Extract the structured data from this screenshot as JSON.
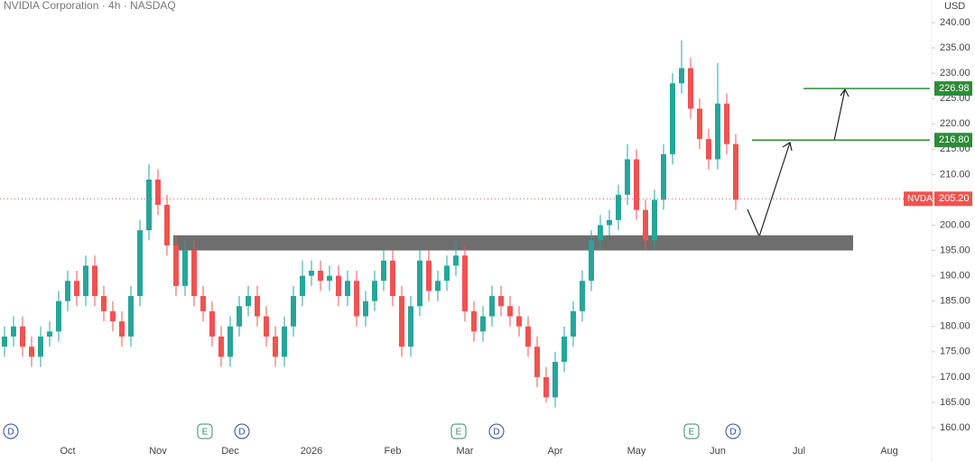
{
  "chart_data": {
    "type": "candlestick",
    "title": "NVIDIA Corporation · 4h · NASDAQ",
    "currency": "USD",
    "up_color": "#26a69a",
    "down_color": "#ef5350",
    "categories": [
      null,
      null,
      null,
      null,
      null,
      null,
      null,
      "Oct",
      null,
      null,
      null,
      null,
      null,
      null,
      null,
      null,
      null,
      "Nov",
      null,
      null,
      null,
      null,
      null,
      null,
      null,
      "Dec",
      null,
      null,
      null,
      null,
      null,
      null,
      null,
      null,
      "2026",
      null,
      null,
      null,
      null,
      null,
      null,
      null,
      null,
      "Feb",
      null,
      null,
      null,
      null,
      null,
      null,
      null,
      "Mar",
      null,
      null,
      null,
      null,
      null,
      null,
      null,
      null,
      null,
      "Apr",
      null,
      null,
      null,
      null,
      null,
      null,
      null,
      null,
      "May",
      null,
      null,
      null,
      null,
      null,
      null,
      null,
      null,
      "Jun",
      null,
      null,
      null,
      null,
      null,
      null,
      null,
      null,
      "Jul",
      null,
      null,
      null,
      null,
      null,
      null,
      null,
      null,
      null,
      "Aug",
      null,
      null,
      null,
      null
    ],
    "open": [
      176,
      178,
      180,
      176,
      174,
      178,
      179,
      185,
      189,
      186,
      192,
      186,
      183,
      181,
      178,
      186,
      199,
      209,
      204,
      196,
      188,
      195,
      186,
      183,
      178,
      174,
      180,
      184,
      186,
      182,
      178,
      174,
      180,
      186,
      190,
      191,
      189,
      190,
      186,
      189,
      182,
      185,
      189,
      193,
      186,
      176,
      184,
      193,
      187,
      189,
      192,
      194,
      183,
      179,
      182,
      186,
      184,
      182,
      180,
      176,
      170,
      166,
      173,
      178,
      183,
      189,
      197,
      200,
      201,
      206,
      213,
      203,
      197,
      205,
      214,
      228,
      231,
      223,
      217,
      213,
      224,
      216,
      null,
      null,
      null,
      null,
      null,
      null,
      null,
      null,
      null,
      null,
      null,
      null,
      null,
      null,
      null,
      null,
      null,
      null,
      null,
      null,
      null
    ],
    "high": [
      180,
      182,
      182,
      178,
      180,
      181,
      187,
      191,
      191,
      194,
      194,
      188,
      185,
      183,
      188,
      201,
      212,
      211,
      206,
      198,
      197,
      197,
      188,
      185,
      180,
      182,
      186,
      188,
      188,
      184,
      180,
      182,
      188,
      193,
      193,
      193,
      192,
      192,
      191,
      191,
      187,
      191,
      195,
      195,
      188,
      186,
      195,
      195,
      191,
      194,
      197,
      196,
      185,
      184,
      188,
      188,
      186,
      184,
      182,
      178,
      172,
      175,
      180,
      185,
      191,
      199,
      202,
      203,
      208,
      216,
      215,
      205,
      207,
      216,
      230,
      236.5,
      233,
      225,
      219,
      232,
      226,
      218,
      null,
      null,
      null,
      null,
      null,
      null,
      null,
      null,
      null,
      null,
      null,
      null,
      null,
      null,
      null,
      null,
      null,
      null,
      null,
      null,
      null
    ],
    "low": [
      174,
      176,
      174,
      172,
      172,
      176,
      177,
      183,
      184,
      184,
      184,
      181,
      179,
      176,
      176,
      184,
      197,
      202,
      194,
      186,
      186,
      184,
      181,
      176,
      172,
      172,
      178,
      182,
      180,
      176,
      172,
      172,
      178,
      184,
      188,
      187,
      187,
      184,
      184,
      180,
      180,
      183,
      187,
      184,
      174,
      174,
      182,
      185,
      185,
      187,
      190,
      181,
      177,
      177,
      180,
      182,
      180,
      178,
      174,
      168,
      165,
      164,
      171,
      176,
      181,
      187,
      195,
      198,
      199,
      204,
      201,
      195,
      195,
      203,
      212,
      226,
      221,
      215,
      211,
      211,
      214,
      203,
      null,
      null,
      null,
      null,
      null,
      null,
      null,
      null,
      null,
      null,
      null,
      null,
      null,
      null,
      null,
      null,
      null,
      null,
      null,
      null,
      null
    ],
    "close": [
      178,
      180,
      176,
      174,
      178,
      179,
      185,
      189,
      186,
      192,
      186,
      183,
      181,
      178,
      186,
      199,
      209,
      204,
      196,
      188,
      195,
      186,
      183,
      178,
      174,
      180,
      184,
      186,
      182,
      178,
      174,
      180,
      186,
      190,
      191,
      189,
      190,
      186,
      189,
      182,
      185,
      189,
      193,
      186,
      176,
      184,
      193,
      187,
      189,
      192,
      194,
      183,
      179,
      182,
      186,
      184,
      182,
      180,
      176,
      170,
      166,
      173,
      178,
      183,
      189,
      197,
      200,
      201,
      206,
      213,
      203,
      197,
      205,
      214,
      228,
      231,
      223,
      217,
      213,
      224,
      216,
      205,
      null,
      null,
      null,
      null,
      null,
      null,
      null,
      null,
      null,
      null,
      null,
      null,
      null,
      null,
      null,
      null,
      null,
      null,
      null,
      null,
      null
    ],
    "ylim": [
      160,
      240
    ],
    "yticks": [
      {
        "value": 160,
        "label": "160.00"
      },
      {
        "value": 165,
        "label": "165.00"
      },
      {
        "value": 170,
        "label": "170.00"
      },
      {
        "value": 175,
        "label": "175.00"
      },
      {
        "value": 180,
        "label": "180.00"
      },
      {
        "value": 185,
        "label": "185.00"
      },
      {
        "value": 190,
        "label": "190.00"
      },
      {
        "value": 195,
        "label": "195.00"
      },
      {
        "value": 200,
        "label": "200.00"
      },
      {
        "value": 205,
        "label": "205.00"
      },
      {
        "value": 210,
        "label": "210.00"
      },
      {
        "value": 215,
        "label": "215.00"
      },
      {
        "value": 220,
        "label": "220.00"
      },
      {
        "value": 225,
        "label": "225.00"
      },
      {
        "value": 230,
        "label": "230.00"
      },
      {
        "value": 235,
        "label": "235.00"
      },
      {
        "value": 240,
        "label": "240.00"
      }
    ],
    "zone": [
      195,
      198
    ],
    "levels": [
      {
        "value": 216.8,
        "label": "216.80"
      },
      {
        "value": 226.98,
        "label": "226.98"
      }
    ],
    "level_color": "#2e8b3a",
    "last_price": {
      "name": "NVDA",
      "value": 205.2,
      "label": "205.20"
    },
    "events": [
      "D",
      "E",
      "D",
      "E",
      "D",
      "E",
      "D"
    ]
  }
}
